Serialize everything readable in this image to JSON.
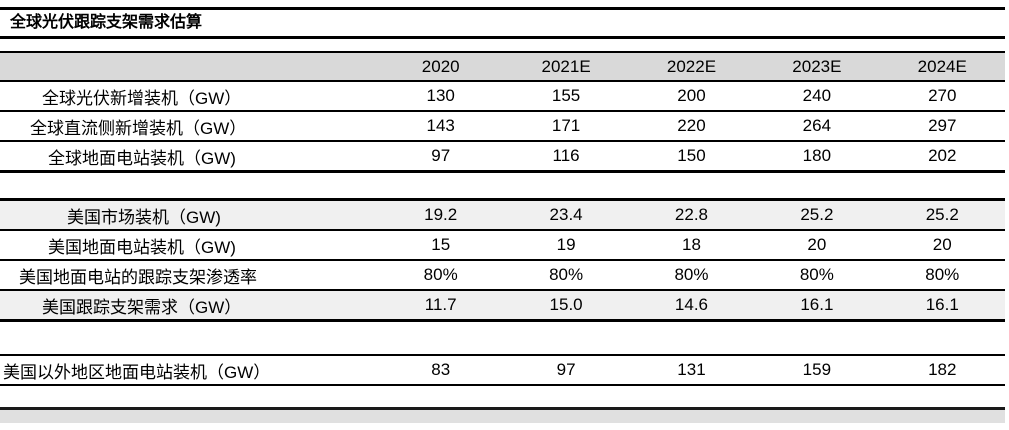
{
  "chart_data": {
    "type": "table",
    "title": "全球光伏跟踪支架需求估算",
    "columns": [
      "2020",
      "2021E",
      "2022E",
      "2023E",
      "2024E"
    ],
    "rows": [
      {
        "label": "全球光伏新增装机（GW）",
        "values": [
          "130",
          "155",
          "200",
          "240",
          "270"
        ]
      },
      {
        "label": "全球直流侧新增装机（GW）",
        "values": [
          "143",
          "171",
          "220",
          "264",
          "297"
        ]
      },
      {
        "label": "全球地面电站装机（GW)",
        "values": [
          "97",
          "116",
          "150",
          "180",
          "202"
        ]
      },
      {
        "label": "美国市场装机（GW)",
        "values": [
          "19.2",
          "23.4",
          "22.8",
          "25.2",
          "25.2"
        ]
      },
      {
        "label": "美国地面电站装机（GW)",
        "values": [
          "15",
          "19",
          "18",
          "20",
          "20"
        ]
      },
      {
        "label": "美国地面电站的跟踪支架渗透率",
        "values": [
          "80%",
          "80%",
          "80%",
          "80%",
          "80%"
        ]
      },
      {
        "label": "美国跟踪支架需求（GW）",
        "values": [
          "11.7",
          "15.0",
          "14.6",
          "16.1",
          "16.1"
        ]
      },
      {
        "label": "美国以外地区地面电站装机（GW）",
        "values": [
          "83",
          "97",
          "131",
          "159",
          "182"
        ]
      }
    ]
  },
  "colors": {
    "header_bg": "#d9d9d9",
    "shaded_row_bg": "#f0f0f0",
    "rule_line": "#000000",
    "bottom_strip": "#e0e0e0"
  }
}
